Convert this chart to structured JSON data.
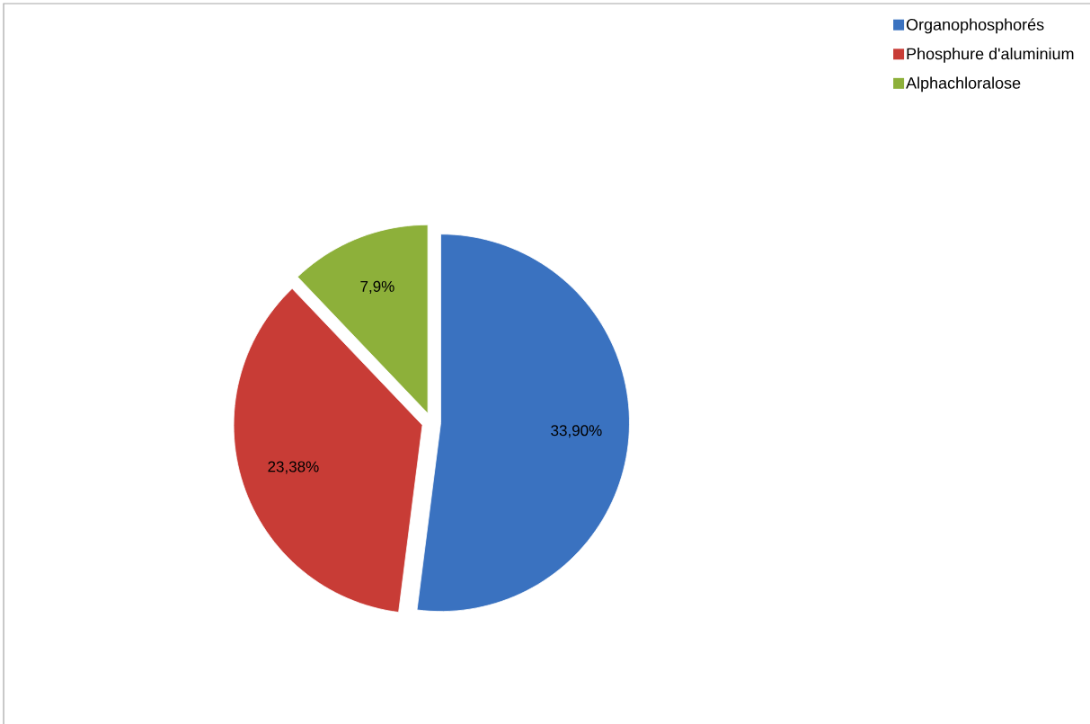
{
  "chart_data": {
    "type": "pie",
    "categories": [
      "Organophosphorés",
      "Phosphure d'aluminium",
      "Alphachloralose"
    ],
    "values": [
      33.9,
      23.38,
      7.9
    ],
    "colors": [
      "#3a72c0",
      "#c83c36",
      "#8db03a"
    ],
    "value_labels": [
      "33,90%",
      "23,38%",
      "7,9%"
    ],
    "legend": "top right"
  }
}
